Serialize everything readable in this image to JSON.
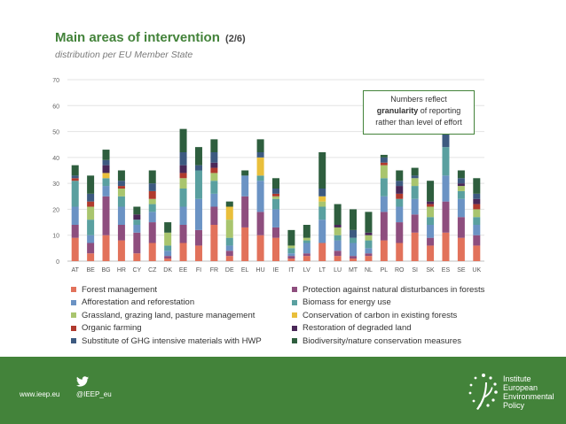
{
  "title": "Main areas of intervention",
  "title_suffix": "(2/6)",
  "subtitle": "distribution per EU Member State",
  "callout": {
    "line1": "Numbers reflect",
    "line2_bold": "granularity",
    "line2_rest": "of reporting",
    "line3": "rather than level of effort"
  },
  "footer": {
    "website": "www.ieep.eu",
    "twitter": "@IEEP_eu",
    "logo_line1": "Institute",
    "logo_line2": "European",
    "logo_line3": "Environmental",
    "logo_line4": "Policy"
  },
  "chart_data": {
    "type": "bar",
    "stacked": true,
    "ylim": [
      0,
      70
    ],
    "yticks": [
      0,
      10,
      20,
      30,
      40,
      50,
      60,
      70
    ],
    "grid": true,
    "legend_position": "bottom",
    "categories": [
      "AT",
      "BE",
      "BG",
      "HR",
      "CY",
      "CZ",
      "DK",
      "EE",
      "FI",
      "FR",
      "DE",
      "EL",
      "HU",
      "IE",
      "IT",
      "LV",
      "LT",
      "LU",
      "MT",
      "NL",
      "PL",
      "RO",
      "SI",
      "SK",
      "ES",
      "SE",
      "UK"
    ],
    "series": [
      {
        "name": "Forest management",
        "color": "#e2725b",
        "values": [
          9,
          3,
          10,
          8,
          3,
          7,
          1,
          7,
          6,
          14,
          2,
          13,
          10,
          9,
          1,
          2,
          7,
          2,
          1,
          2,
          8,
          7,
          11,
          6,
          11,
          9,
          6
        ]
      },
      {
        "name": "Protection against natural disturbances in forests",
        "color": "#8e4e7e",
        "values": [
          5,
          4,
          15,
          6,
          8,
          8,
          1,
          7,
          6,
          7,
          2,
          12,
          9,
          4,
          1,
          1,
          0,
          2,
          1,
          1,
          11,
          8,
          7,
          3,
          12,
          8,
          4
        ]
      },
      {
        "name": "Afforestation and reforestation",
        "color": "#6b93c4",
        "values": [
          7,
          3,
          4,
          7,
          3,
          4,
          2,
          7,
          12,
          5,
          2,
          8,
          12,
          7,
          1,
          4,
          9,
          4,
          5,
          2,
          6,
          6,
          6,
          5,
          10,
          7,
          4
        ]
      },
      {
        "name": "Biomass for energy use",
        "color": "#5aa0a0",
        "values": [
          10,
          6,
          3,
          4,
          2,
          3,
          2,
          7,
          11,
          5,
          3,
          0,
          2,
          4,
          2,
          1,
          5,
          2,
          2,
          3,
          7,
          3,
          5,
          3,
          11,
          3,
          3
        ]
      },
      {
        "name": "Grassland, grazing land, pasture management",
        "color": "#a9c56e",
        "values": [
          0,
          5,
          0,
          3,
          0,
          2,
          5,
          4,
          0,
          3,
          7,
          0,
          0,
          1,
          1,
          1,
          2,
          3,
          0,
          2,
          5,
          0,
          3,
          4,
          0,
          2,
          3
        ]
      },
      {
        "name": "Conservation of carbon in existing forests",
        "color": "#e9bf3b",
        "values": [
          0,
          0,
          2,
          0,
          0,
          0,
          0,
          0,
          0,
          0,
          5,
          0,
          7,
          0,
          0,
          0,
          2,
          0,
          0,
          0,
          0,
          0,
          0,
          0,
          0,
          0,
          0
        ]
      },
      {
        "name": "Organic farming",
        "color": "#b03a2e",
        "values": [
          1,
          2,
          0,
          1,
          0,
          3,
          0,
          2,
          0,
          2,
          0,
          0,
          0,
          1,
          0,
          0,
          0,
          0,
          0,
          0,
          1,
          2,
          0,
          1,
          0,
          0,
          2
        ]
      },
      {
        "name": "Restoration of degraded land",
        "color": "#4a2858",
        "values": [
          0,
          0,
          3,
          0,
          2,
          0,
          0,
          3,
          0,
          2,
          0,
          0,
          0,
          0,
          0,
          0,
          0,
          1,
          0,
          1,
          0,
          3,
          0,
          1,
          0,
          1,
          2
        ]
      },
      {
        "name": "Substitute of GHG intensive materials with HWP",
        "color": "#3d5a80",
        "values": [
          1,
          3,
          2,
          2,
          0,
          3,
          0,
          5,
          2,
          4,
          0,
          0,
          2,
          2,
          0,
          0,
          3,
          0,
          3,
          0,
          2,
          2,
          1,
          0,
          6,
          2,
          2
        ]
      },
      {
        "name": "Biodiversity/nature conservation measures",
        "color": "#2e5e3e",
        "values": [
          4,
          7,
          4,
          4,
          3,
          5,
          4,
          9,
          7,
          5,
          2,
          2,
          5,
          4,
          6,
          5,
          14,
          8,
          8,
          8,
          1,
          4,
          3,
          8,
          0,
          3,
          6
        ]
      }
    ]
  }
}
